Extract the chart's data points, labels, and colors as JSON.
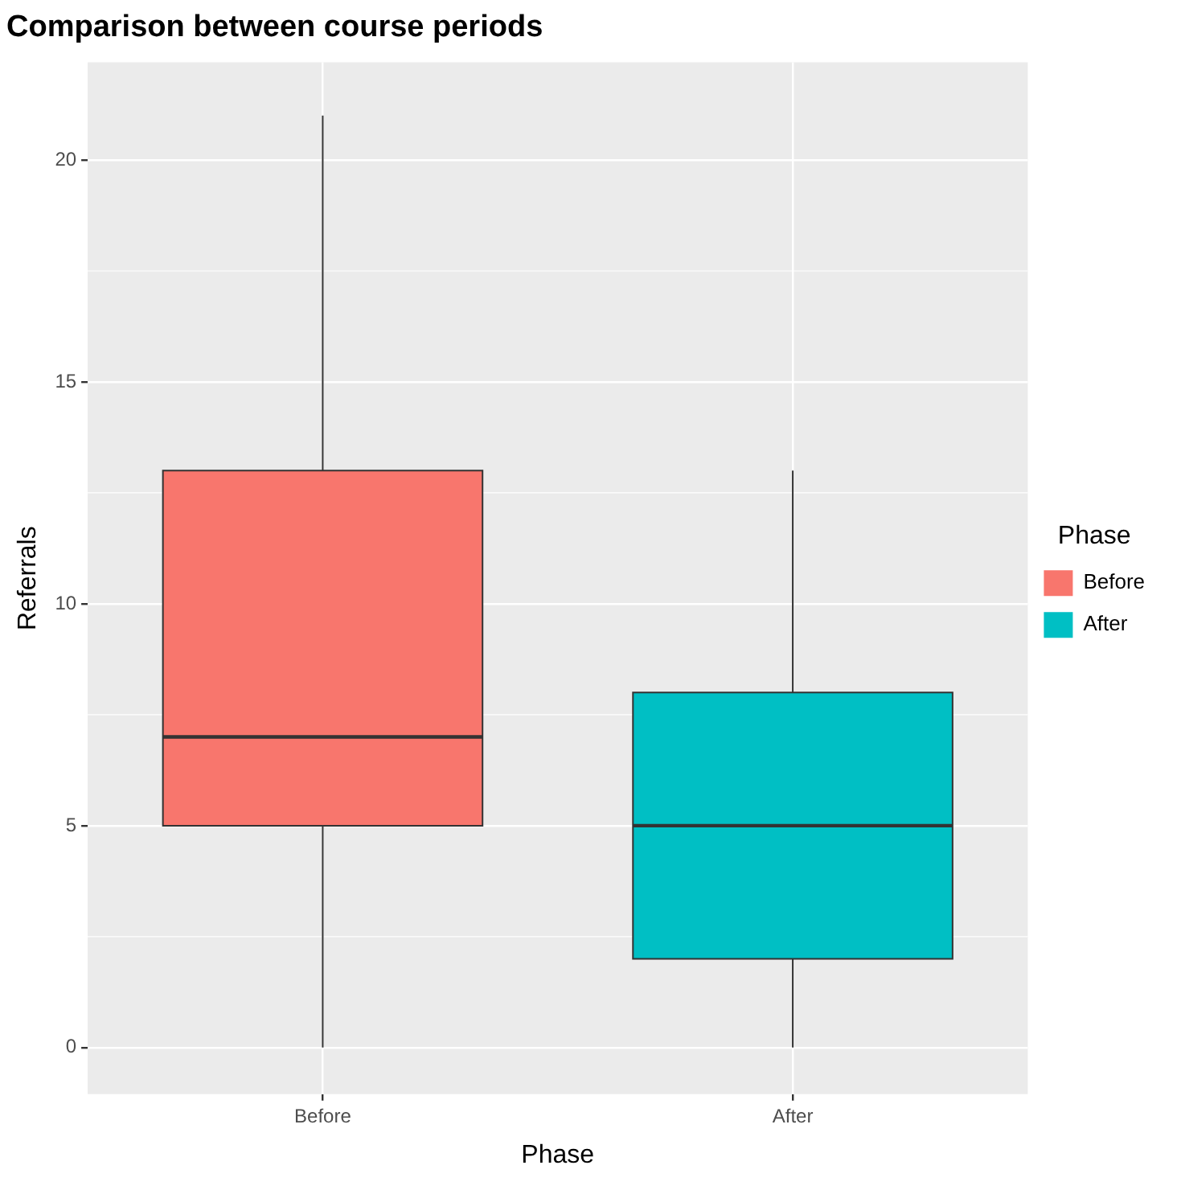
{
  "chart_data": {
    "type": "box",
    "title": "Comparison between course periods",
    "xlabel": "Phase",
    "ylabel": "Referrals",
    "legend_title": "Phase",
    "categories": [
      "Before",
      "After"
    ],
    "series": [
      {
        "name": "Before",
        "color": "#f8766d",
        "boxes": [
          {
            "low": 0,
            "q1": 5,
            "median": 7,
            "q3": 13,
            "high": 21
          },
          null
        ]
      },
      {
        "name": "After",
        "color": "#00bfc4",
        "boxes": [
          null,
          {
            "low": 0,
            "q1": 2,
            "median": 5,
            "q3": 8,
            "high": 13
          }
        ]
      }
    ],
    "ylim": [
      -1.05,
      22.2
    ],
    "yticks": [
      0,
      5,
      10,
      15,
      20
    ],
    "grid": true,
    "legend": "right"
  }
}
